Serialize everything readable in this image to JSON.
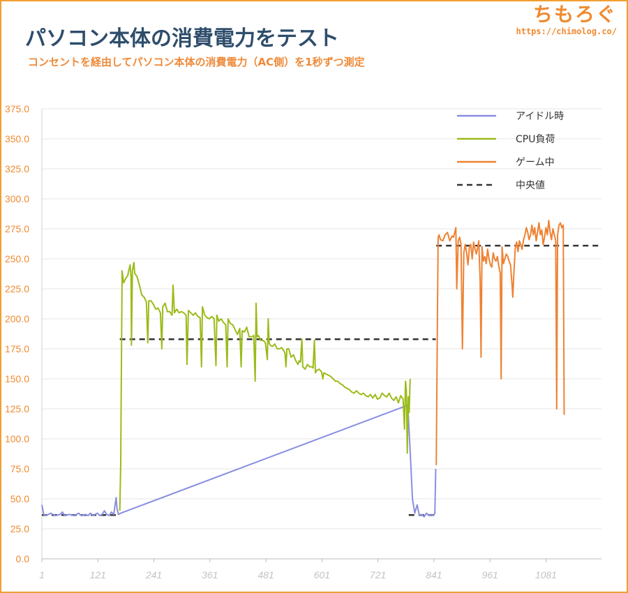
{
  "header": {
    "title": "パソコン本体の消費電力をテスト",
    "subtitle": "コンセントを経由してパソコン本体の消費電力（AC側）を1秒ずつ測定"
  },
  "brand": {
    "name": "ちもろぐ",
    "url": "https://chimolog.co/"
  },
  "chart_data": {
    "type": "line",
    "title": "パソコン本体の消費電力をテスト",
    "subtitle": "コンセントを経由してパソコン本体の消費電力（AC側）を1秒ずつ測定",
    "xlabel": "",
    "ylabel": "",
    "xlim": [
      1,
      1200
    ],
    "ylim": [
      0,
      375
    ],
    "y_ticks": [
      "0.0",
      "25.0",
      "50.0",
      "75.0",
      "100.0",
      "125.0",
      "150.0",
      "175.0",
      "200.0",
      "225.0",
      "250.0",
      "275.0",
      "300.0",
      "325.0",
      "350.0",
      "375.0"
    ],
    "x_ticks": [
      "1",
      "121",
      "241",
      "361",
      "481",
      "601",
      "721",
      "841",
      "961",
      "1081"
    ],
    "grid": "horizontal",
    "legend_position": "top-right",
    "legend": [
      "アイドル時",
      "CPU負荷",
      "ゲーム中",
      "中央値"
    ],
    "colors": {
      "idle": "#8a8ee0",
      "cpu": "#9bbb1a",
      "game": "#ee8233",
      "median": "#333333",
      "grid": "#e4e4e4",
      "tick_y": "#f08a30",
      "tick_x": "#bfc3c7"
    },
    "series": [
      {
        "name": "アイドル時",
        "points": [
          [
            1,
            45
          ],
          [
            5,
            37
          ],
          [
            10,
            36
          ],
          [
            20,
            38
          ],
          [
            30,
            36
          ],
          [
            40,
            37
          ],
          [
            45,
            39
          ],
          [
            50,
            36
          ],
          [
            60,
            37
          ],
          [
            70,
            36
          ],
          [
            80,
            38
          ],
          [
            85,
            36
          ],
          [
            95,
            37
          ],
          [
            100,
            36
          ],
          [
            105,
            38
          ],
          [
            110,
            36
          ],
          [
            115,
            37
          ],
          [
            120,
            38
          ],
          [
            125,
            36
          ],
          [
            130,
            37
          ],
          [
            135,
            40
          ],
          [
            140,
            37
          ],
          [
            145,
            36
          ],
          [
            150,
            39
          ],
          [
            155,
            37
          ],
          [
            160,
            51
          ],
          [
            162,
            42
          ],
          [
            165,
            37
          ],
          [
            170,
            38
          ],
          [
            785,
            128
          ],
          [
            790,
            90
          ],
          [
            795,
            50
          ],
          [
            800,
            38
          ],
          [
            805,
            45
          ],
          [
            810,
            36
          ],
          [
            815,
            37
          ],
          [
            820,
            35
          ],
          [
            825,
            38
          ],
          [
            830,
            36
          ],
          [
            835,
            37
          ],
          [
            840,
            36
          ],
          [
            843,
            38
          ],
          [
            845,
            75
          ]
        ]
      },
      {
        "name": "CPU負荷",
        "points": [
          [
            168,
            40
          ],
          [
            170,
            80
          ],
          [
            173,
            240
          ],
          [
            176,
            230
          ],
          [
            180,
            233
          ],
          [
            183,
            235
          ],
          [
            185,
            236
          ],
          [
            187,
            240
          ],
          [
            190,
            245
          ],
          [
            192,
            235
          ],
          [
            193,
            178
          ],
          [
            195,
            240
          ],
          [
            198,
            247
          ],
          [
            200,
            238
          ],
          [
            205,
            235
          ],
          [
            210,
            228
          ],
          [
            215,
            220
          ],
          [
            220,
            218
          ],
          [
            225,
            214
          ],
          [
            228,
            180
          ],
          [
            230,
            215
          ],
          [
            235,
            215
          ],
          [
            240,
            212
          ],
          [
            245,
            208
          ],
          [
            250,
            209
          ],
          [
            255,
            205
          ],
          [
            258,
            175
          ],
          [
            260,
            210
          ],
          [
            265,
            213
          ],
          [
            270,
            206
          ],
          [
            275,
            206
          ],
          [
            280,
            203
          ],
          [
            282,
            228
          ],
          [
            285,
            205
          ],
          [
            290,
            208
          ],
          [
            295,
            205
          ],
          [
            300,
            206
          ],
          [
            305,
            205
          ],
          [
            310,
            203
          ],
          [
            312,
            162
          ],
          [
            315,
            207
          ],
          [
            320,
            205
          ],
          [
            325,
            203
          ],
          [
            330,
            205
          ],
          [
            335,
            202
          ],
          [
            340,
            201
          ],
          [
            343,
            160
          ],
          [
            345,
            210
          ],
          [
            350,
            203
          ],
          [
            355,
            201
          ],
          [
            360,
            200
          ],
          [
            365,
            202
          ],
          [
            370,
            200
          ],
          [
            374,
            161
          ],
          [
            376,
            203
          ],
          [
            380,
            198
          ],
          [
            385,
            200
          ],
          [
            390,
            197
          ],
          [
            395,
            195
          ],
          [
            398,
            160
          ],
          [
            400,
            200
          ],
          [
            405,
            196
          ],
          [
            410,
            195
          ],
          [
            415,
            191
          ],
          [
            420,
            187
          ],
          [
            425,
            192
          ],
          [
            428,
            160
          ],
          [
            430,
            190
          ],
          [
            435,
            189
          ],
          [
            440,
            193
          ],
          [
            445,
            185
          ],
          [
            450,
            185
          ],
          [
            455,
            186
          ],
          [
            458,
            148
          ],
          [
            460,
            213
          ],
          [
            462,
            185
          ],
          [
            465,
            186
          ],
          [
            470,
            182
          ],
          [
            475,
            182
          ],
          [
            480,
            180
          ],
          [
            484,
            166
          ],
          [
            486,
            200
          ],
          [
            488,
            180
          ],
          [
            490,
            178
          ],
          [
            495,
            177
          ],
          [
            500,
            179
          ],
          [
            505,
            175
          ],
          [
            510,
            175
          ],
          [
            515,
            176
          ],
          [
            520,
            173
          ],
          [
            522,
            171
          ],
          [
            524,
            160
          ],
          [
            526,
            175
          ],
          [
            530,
            175
          ],
          [
            535,
            168
          ],
          [
            540,
            170
          ],
          [
            545,
            165
          ],
          [
            550,
            162
          ],
          [
            552,
            165
          ],
          [
            555,
            164
          ],
          [
            558,
            183
          ],
          [
            560,
            160
          ],
          [
            565,
            158
          ],
          [
            570,
            162
          ],
          [
            575,
            160
          ],
          [
            580,
            160
          ],
          [
            582,
            159
          ],
          [
            585,
            182
          ],
          [
            587,
            155
          ],
          [
            590,
            157
          ],
          [
            595,
            158
          ],
          [
            600,
            156
          ],
          [
            603,
            150
          ],
          [
            605,
            155
          ],
          [
            610,
            154
          ],
          [
            615,
            153
          ],
          [
            620,
            152
          ],
          [
            625,
            150
          ],
          [
            630,
            148
          ],
          [
            635,
            148
          ],
          [
            640,
            146
          ],
          [
            645,
            145
          ],
          [
            650,
            143
          ],
          [
            655,
            142
          ],
          [
            660,
            141
          ],
          [
            665,
            139
          ],
          [
            670,
            138
          ],
          [
            675,
            140
          ],
          [
            680,
            138
          ],
          [
            685,
            137
          ],
          [
            690,
            138
          ],
          [
            695,
            136
          ],
          [
            700,
            135
          ],
          [
            705,
            137
          ],
          [
            710,
            134
          ],
          [
            712,
            135
          ],
          [
            715,
            137
          ],
          [
            720,
            133
          ],
          [
            725,
            134
          ],
          [
            730,
            138
          ],
          [
            735,
            136
          ],
          [
            740,
            135
          ],
          [
            745,
            138
          ],
          [
            750,
            134
          ],
          [
            755,
            132
          ],
          [
            760,
            135
          ],
          [
            765,
            130
          ],
          [
            770,
            136
          ],
          [
            775,
            133
          ],
          [
            778,
            108
          ],
          [
            780,
            148
          ],
          [
            782,
            140
          ],
          [
            784,
            88
          ],
          [
            786,
            135
          ],
          [
            788,
            122
          ],
          [
            790,
            150
          ]
        ]
      },
      {
        "name": "ゲーム中",
        "points": [
          [
            846,
            78
          ],
          [
            848,
            180
          ],
          [
            850,
            268
          ],
          [
            852,
            270
          ],
          [
            855,
            266
          ],
          [
            860,
            265
          ],
          [
            865,
            270
          ],
          [
            870,
            272
          ],
          [
            875,
            265
          ],
          [
            880,
            269
          ],
          [
            883,
            268
          ],
          [
            888,
            276
          ],
          [
            890,
            225
          ],
          [
            893,
            265
          ],
          [
            896,
            268
          ],
          [
            899,
            262
          ],
          [
            902,
            175
          ],
          [
            905,
            255
          ],
          [
            908,
            262
          ],
          [
            911,
            255
          ],
          [
            914,
            245
          ],
          [
            917,
            260
          ],
          [
            920,
            262
          ],
          [
            923,
            250
          ],
          [
            926,
            264
          ],
          [
            929,
            258
          ],
          [
            932,
            254
          ],
          [
            935,
            260
          ],
          [
            937,
            265
          ],
          [
            940,
            232
          ],
          [
            942,
            168
          ],
          [
            944,
            260
          ],
          [
            947,
            248
          ],
          [
            950,
            252
          ],
          [
            953,
            246
          ],
          [
            956,
            258
          ],
          [
            959,
            250
          ],
          [
            962,
            245
          ],
          [
            965,
            243
          ],
          [
            968,
            255
          ],
          [
            971,
            250
          ],
          [
            974,
            248
          ],
          [
            977,
            252
          ],
          [
            980,
            244
          ],
          [
            983,
            238
          ],
          [
            985,
            150
          ],
          [
            987,
            260
          ],
          [
            990,
            246
          ],
          [
            993,
            250
          ],
          [
            996,
            254
          ],
          [
            999,
            252
          ],
          [
            1002,
            248
          ],
          [
            1005,
            245
          ],
          [
            1008,
            230
          ],
          [
            1010,
            218
          ],
          [
            1012,
            235
          ],
          [
            1015,
            258
          ],
          [
            1018,
            264
          ],
          [
            1021,
            256
          ],
          [
            1024,
            265
          ],
          [
            1027,
            262
          ],
          [
            1030,
            258
          ],
          [
            1033,
            266
          ],
          [
            1036,
            270
          ],
          [
            1039,
            276
          ],
          [
            1042,
            272
          ],
          [
            1045,
            266
          ],
          [
            1048,
            270
          ],
          [
            1051,
            278
          ],
          [
            1054,
            270
          ],
          [
            1057,
            276
          ],
          [
            1060,
            265
          ],
          [
            1063,
            272
          ],
          [
            1066,
            280
          ],
          [
            1069,
            270
          ],
          [
            1072,
            274
          ],
          [
            1075,
            262
          ],
          [
            1078,
            268
          ],
          [
            1081,
            276
          ],
          [
            1084,
            270
          ],
          [
            1087,
            282
          ],
          [
            1090,
            272
          ],
          [
            1093,
            266
          ],
          [
            1096,
            275
          ],
          [
            1099,
            270
          ],
          [
            1102,
            265
          ],
          [
            1104,
            125
          ],
          [
            1106,
            270
          ],
          [
            1109,
            278
          ],
          [
            1112,
            280
          ],
          [
            1115,
            276
          ],
          [
            1118,
            278
          ],
          [
            1120,
            120
          ]
        ]
      }
    ],
    "medians": [
      {
        "name": "中央値",
        "x": [
          1,
          165
        ],
        "value": 36.5
      },
      {
        "name": "中央値",
        "x": [
          168,
          845
        ],
        "value": 183
      },
      {
        "name": "中央値",
        "x": [
          787,
          842
        ],
        "value": 36.5
      },
      {
        "name": "中央値",
        "x": [
          846,
          1200
        ],
        "value": 261
      }
    ]
  }
}
